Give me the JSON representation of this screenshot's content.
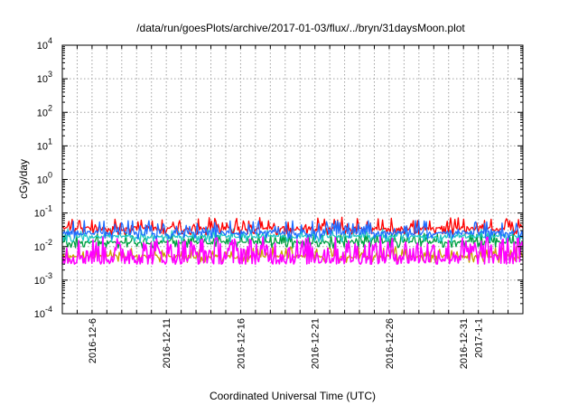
{
  "chart_data": {
    "type": "line",
    "title": "/data/run/goesPlots/archive/2017-01-03/flux/../bryn/31daysMoon.plot",
    "xlabel": "Coordinated Universal Time (UTC)",
    "ylabel": "cGy/day",
    "yscale": "log",
    "ylim": [
      0.0001,
      10000
    ],
    "y_ticks": [
      {
        "value": 0.0001,
        "base": "10",
        "exp": "-4"
      },
      {
        "value": 0.001,
        "base": "10",
        "exp": "-3"
      },
      {
        "value": 0.01,
        "base": "10",
        "exp": "-2"
      },
      {
        "value": 0.1,
        "base": "10",
        "exp": "-1"
      },
      {
        "value": 1,
        "base": "10",
        "exp": "0"
      },
      {
        "value": 10,
        "base": "10",
        "exp": "1"
      },
      {
        "value": 100,
        "base": "10",
        "exp": "2"
      },
      {
        "value": 1000,
        "base": "10",
        "exp": "3"
      },
      {
        "value": 10000,
        "base": "10",
        "exp": "4"
      }
    ],
    "x_range_days": [
      0,
      31
    ],
    "x_ticks": [
      {
        "label": "2016-12-6",
        "day": 2
      },
      {
        "label": "2016-12-11",
        "day": 7
      },
      {
        "label": "2016-12-16",
        "day": 12
      },
      {
        "label": "2016-12-21",
        "day": 17
      },
      {
        "label": "2016-12-26",
        "day": 22
      },
      {
        "label": "2016-12-31",
        "day": 27
      },
      {
        "label": "2017-1-1",
        "day": 28
      }
    ],
    "grid": true,
    "series": [
      {
        "name": "red",
        "color": "#ff0000",
        "baseline": 0.03,
        "spike_max": 0.075
      },
      {
        "name": "blue",
        "color": "#1e6cff",
        "baseline": 0.022,
        "spike_max": 0.06
      },
      {
        "name": "cyan",
        "color": "#20c8c8",
        "baseline": 0.018,
        "spike_max": 0.035
      },
      {
        "name": "green",
        "color": "#00a040",
        "baseline": 0.012,
        "spike_max": 0.025
      },
      {
        "name": "gold",
        "color": "#c8a000",
        "baseline": 0.0045,
        "spike_max": 0.01
      },
      {
        "name": "magenta",
        "color": "#ff00ff",
        "baseline": 0.006,
        "spike_min": 0.003,
        "spike_max": 0.02
      }
    ]
  }
}
